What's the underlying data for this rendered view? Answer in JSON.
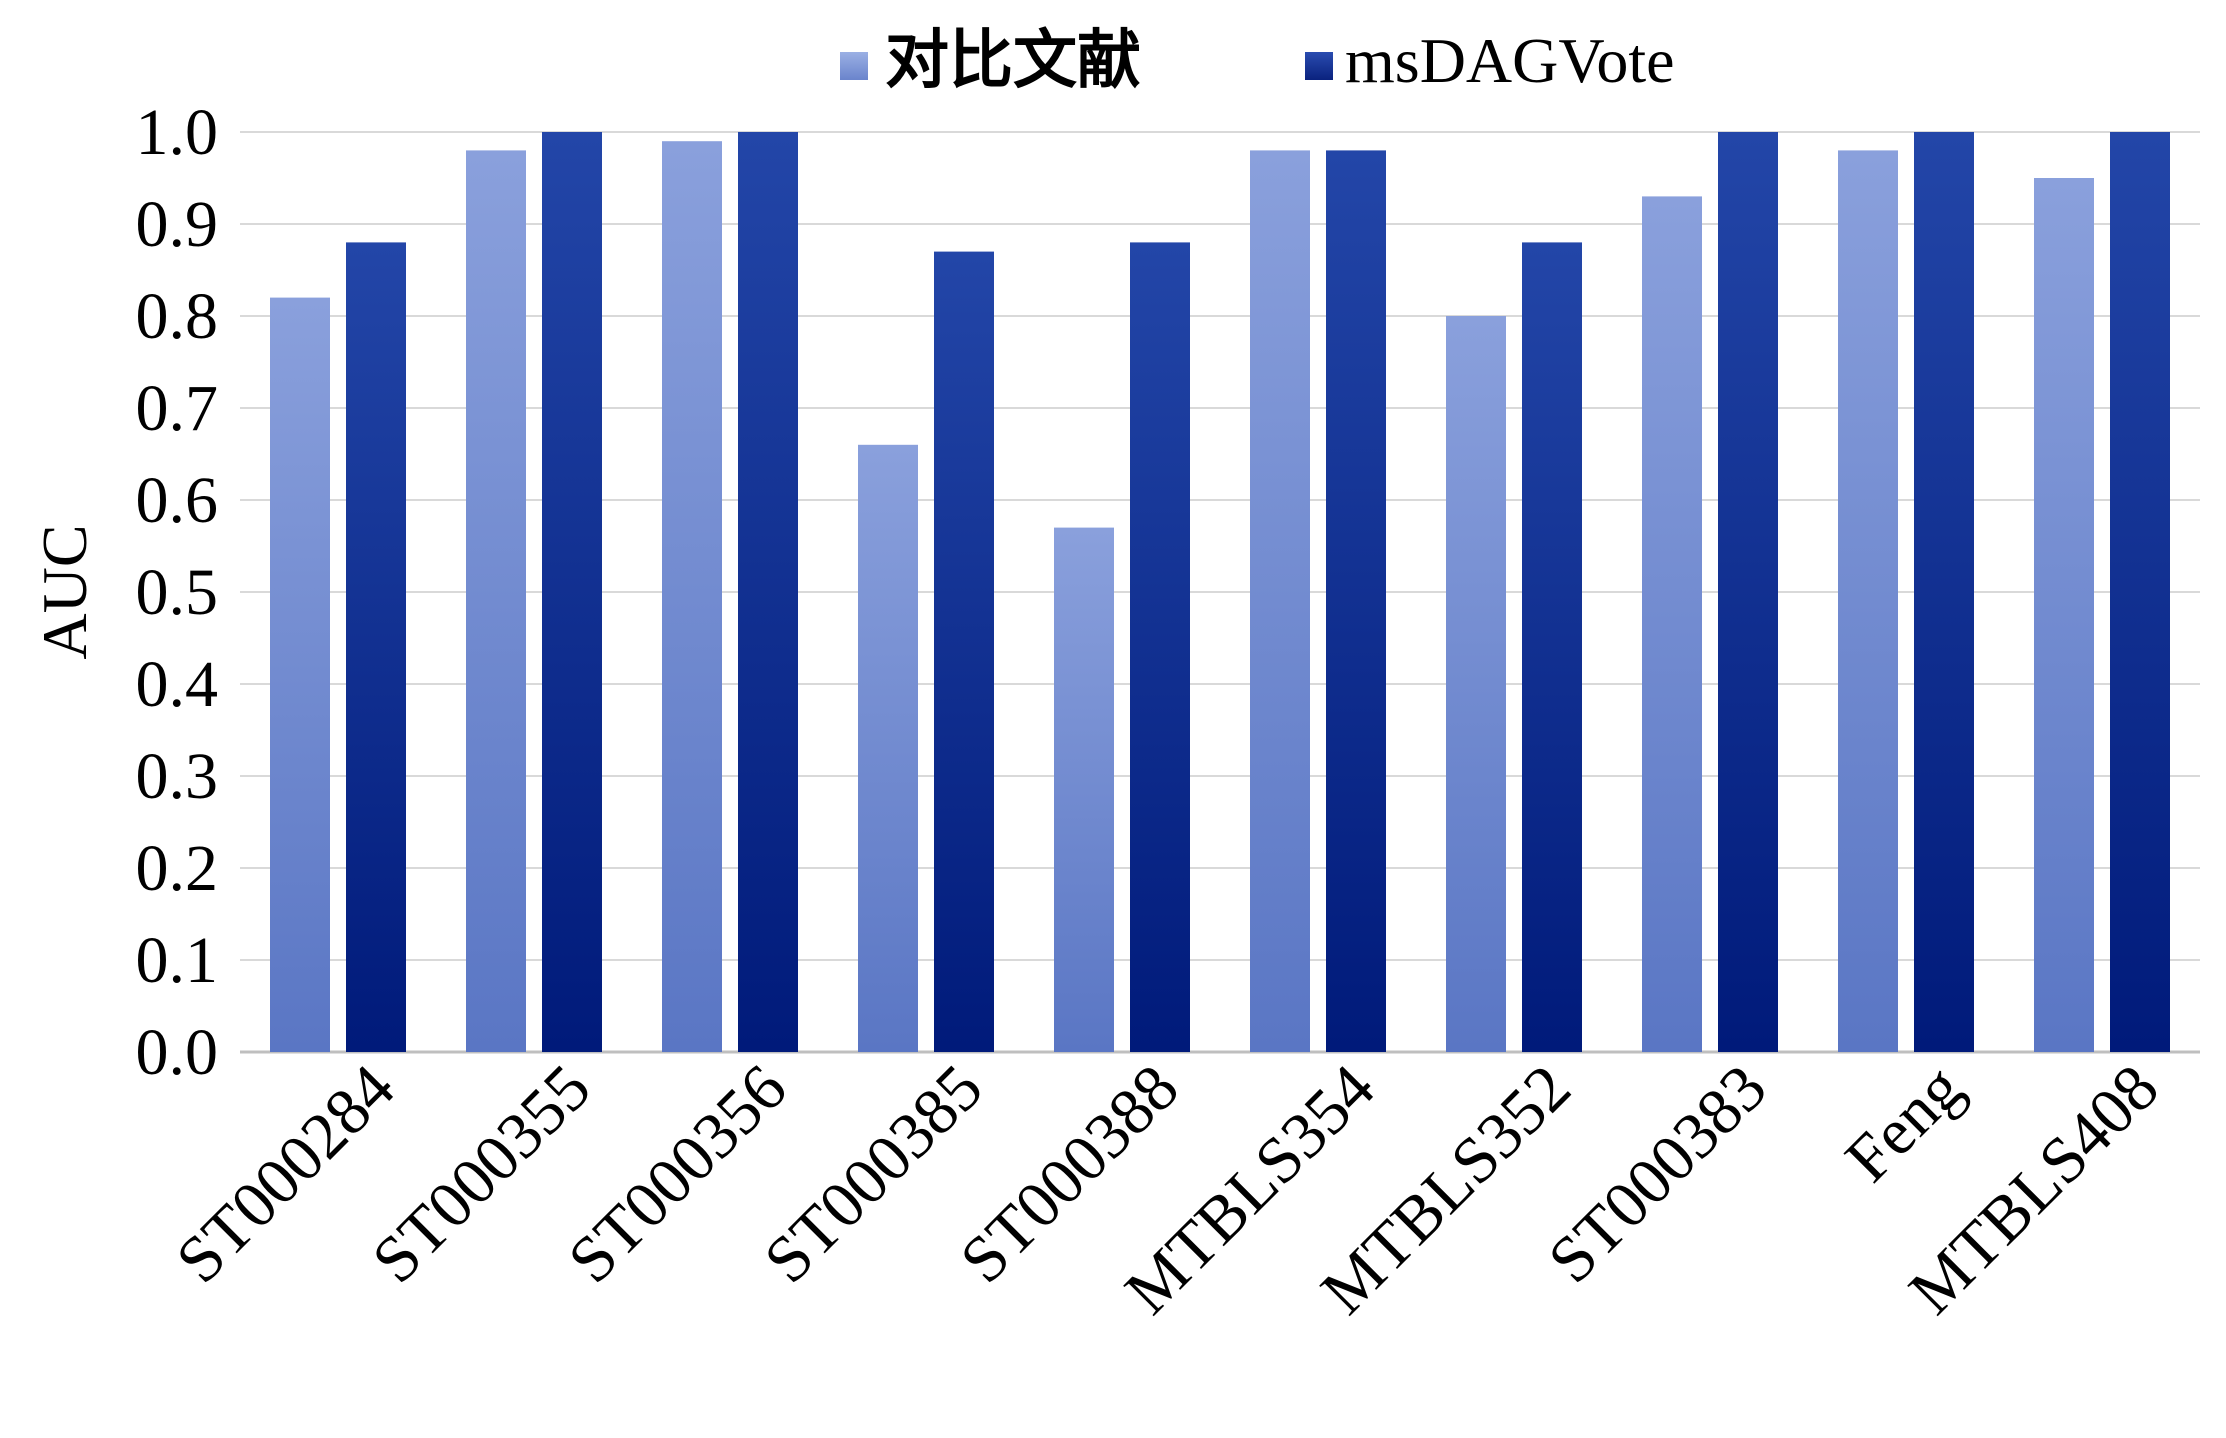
{
  "chart_data": {
    "type": "bar",
    "title": "",
    "xlabel": "",
    "ylabel": "AUC",
    "ylim": [
      0.0,
      1.0
    ],
    "yticks": [
      "0.0",
      "0.1",
      "0.2",
      "0.3",
      "0.4",
      "0.5",
      "0.6",
      "0.7",
      "0.8",
      "0.9",
      "1.0"
    ],
    "grid": true,
    "legend_position": "top-center",
    "categories": [
      "ST000284",
      "ST000355",
      "ST000356",
      "ST000385",
      "ST000388",
      "MTBLS354",
      "MTBLS352",
      "ST000383",
      "Feng",
      "MTBLS408"
    ],
    "series": [
      {
        "name": "对比文献",
        "color": "#7b93d3",
        "values": [
          0.82,
          0.98,
          0.99,
          0.66,
          0.57,
          0.98,
          0.8,
          0.93,
          0.98,
          0.95
        ]
      },
      {
        "name": "msDAGVote",
        "color": "#0a2a8c",
        "values": [
          0.88,
          1.0,
          1.0,
          0.87,
          0.88,
          0.98,
          0.88,
          1.0,
          1.0,
          1.0
        ]
      }
    ]
  }
}
